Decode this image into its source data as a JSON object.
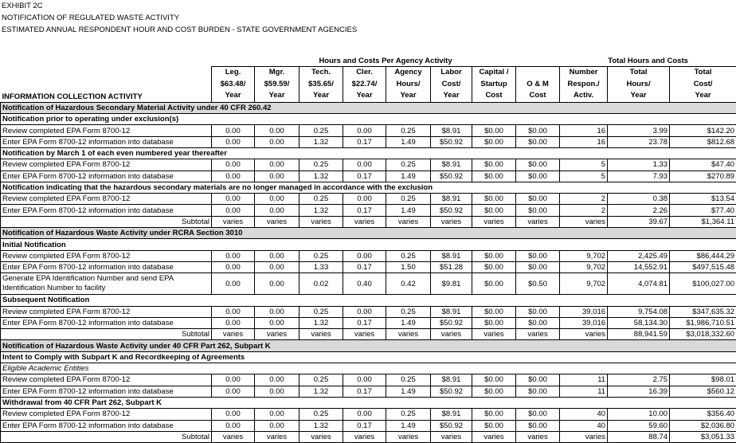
{
  "header": {
    "lines": [
      "EXHIBIT 2C",
      "NOTIFICATION OF REGULATED WASTE ACTIVITY",
      "ESTIMATED ANNUAL RESPONDENT HOUR AND COST BURDEN - STATE GOVERNMENT AGENCIES"
    ]
  },
  "table": {
    "group_headers": [
      "Hours and Costs Per Agency Activity",
      "Total Hours and Costs"
    ],
    "activity_header": "INFORMATION COLLECTION ACTIVITY",
    "column_headers": [
      [
        "Leg.",
        "$63.48/",
        "Year"
      ],
      [
        "Mgr.",
        "$59.59/",
        "Year"
      ],
      [
        "Tech.",
        "$35.65/",
        "Year"
      ],
      [
        "Cler.",
        "$22.74/",
        "Year"
      ],
      [
        "Agency",
        "Hours/",
        "Year"
      ],
      [
        "Labor",
        "Cost/",
        "Year"
      ],
      [
        "Capital /",
        "Startup",
        "Cost"
      ],
      [
        "O & M",
        "Cost"
      ],
      [
        "Number",
        "Respon./",
        "Activ."
      ],
      [
        "Total",
        "Hours/",
        "Year"
      ],
      [
        "Total",
        "Cost/",
        "Year"
      ]
    ],
    "sections": [
      {
        "title": "Notification of Hazardous Secondary Material Activity under 40 CFR 260.42",
        "groups": [
          {
            "title": "Notification prior to operating under exclusion(s)",
            "rows": [
              [
                "Review completed EPA Form 8700-12",
                "0.00",
                "0.00",
                "0.25",
                "0.00",
                "0.25",
                "$8.91",
                "$0.00",
                "$0.00",
                "16",
                "3.99",
                "$142.20"
              ],
              [
                "Enter EPA Form 8700-12 information into database",
                "0.00",
                "0.00",
                "1.32",
                "0.17",
                "1.49",
                "$50.92",
                "$0.00",
                "$0.00",
                "16",
                "23.78",
                "$812.68"
              ]
            ]
          },
          {
            "title": "Notification by March 1 of each even numbered year thereafter",
            "rows": [
              [
                "Review completed EPA Form 8700-12",
                "0.00",
                "0.00",
                "0.25",
                "0.00",
                "0.25",
                "$8.91",
                "$0.00",
                "$0.00",
                "5",
                "1.33",
                "$47.40"
              ],
              [
                "Enter EPA Form 8700-12 information into database",
                "0.00",
                "0.00",
                "1.32",
                "0.17",
                "1.49",
                "$50.92",
                "$0.00",
                "$0.00",
                "5",
                "7.93",
                "$270.89"
              ]
            ]
          },
          {
            "title": "Notification indicating that the hazardous secondary materials are no longer managed in accordance with the exclusion",
            "rows": [
              [
                "Review completed EPA Form 8700-12",
                "0.00",
                "0.00",
                "0.25",
                "0.00",
                "0.25",
                "$8.91",
                "$0.00",
                "$0.00",
                "2",
                "0.38",
                "$13.54"
              ],
              [
                "Enter EPA Form 8700-12 information into database",
                "0.00",
                "0.00",
                "1.32",
                "0.17",
                "1.49",
                "$50.92",
                "$0.00",
                "$0.00",
                "2",
                "2.26",
                "$77.40"
              ]
            ]
          }
        ],
        "subtotal": [
          "Subtotal",
          "varies",
          "varies",
          "varies",
          "varies",
          "varies",
          "varies",
          "varies",
          "varies",
          "varies",
          "39.67",
          "$1,364.11"
        ]
      },
      {
        "title": "Notification of Hazardous Waste Activity under RCRA Section 3010",
        "groups": [
          {
            "title": "Initial Notification",
            "rows": [
              [
                "Review completed EPA Form 8700-12",
                "0.00",
                "0.00",
                "0.25",
                "0.00",
                "0.25",
                "$8.91",
                "$0.00",
                "$0.00",
                "9,702",
                "2,425.49",
                "$86,444.29"
              ],
              [
                "Enter EPA Form 8700-12 information into database",
                "0.00",
                "0.00",
                "1.33",
                "0.17",
                "1.50",
                "$51.28",
                "$0.00",
                "$0.00",
                "9,702",
                "14,552.91",
                "$497,515.48"
              ],
              [
                "Generate EPA Identification Number and send EPA Identification Number to facility",
                "0.00",
                "0.00",
                "0.02",
                "0.40",
                "0.42",
                "$9.81",
                "$0.00",
                "$0.50",
                "9,702",
                "4,074.81",
                "$100,027.00"
              ]
            ]
          },
          {
            "title": "Subsequent Notification",
            "rows": [
              [
                "Review completed EPA Form 8700-12",
                "0.00",
                "0.00",
                "0.25",
                "0.00",
                "0.25",
                "$8.91",
                "$0.00",
                "$0.00",
                "39,016",
                "9,754.08",
                "$347,635.32"
              ],
              [
                "Enter EPA Form 8700-12 information into database",
                "0.00",
                "0.00",
                "1.32",
                "0.17",
                "1.49",
                "$50.92",
                "$0.00",
                "$0.00",
                "39,016",
                "58,134.30",
                "$1,986,710.51"
              ]
            ]
          }
        ],
        "subtotal": [
          "Subtotal",
          "varies",
          "varies",
          "varies",
          "varies",
          "varies",
          "varies",
          "varies",
          "varies",
          "varies",
          "88,941.59",
          "$3,018,332.60"
        ]
      },
      {
        "title": "Notification of Hazardous Waste Activity under 40 CFR Part 262, Subpart K",
        "groups": [
          {
            "title": "Intent to Comply with Subpart K and Recordkeeping of Agreements",
            "subtitle": "Eligible Academic Entities",
            "rows": [
              [
                "Review completed EPA Form 8700-12",
                "0.00",
                "0.00",
                "0.25",
                "0.00",
                "0.25",
                "$8.91",
                "$0.00",
                "$0.00",
                "11",
                "2.75",
                "$98.01"
              ],
              [
                "Enter EPA Form 8700-12 information into database",
                "0.00",
                "0.00",
                "1.32",
                "0.17",
                "1.49",
                "$50.92",
                "$0.00",
                "$0.00",
                "11",
                "16.39",
                "$560.12"
              ]
            ]
          },
          {
            "title": "Withdrawal from 40 CFR Part 262, Subpart K",
            "rows": [
              [
                "Review completed EPA Form 8700-12",
                "0.00",
                "0.00",
                "0.25",
                "0.00",
                "0.25",
                "$8.91",
                "$0.00",
                "$0.00",
                "40",
                "10.00",
                "$356.40"
              ],
              [
                "Enter EPA Form 8700-12 information into database",
                "0.00",
                "0.00",
                "1.32",
                "0.17",
                "1.49",
                "$50.92",
                "$0.00",
                "$0.00",
                "40",
                "59.60",
                "$2,036.80"
              ]
            ]
          }
        ],
        "subtotal": [
          "Subtotal",
          "varies",
          "varies",
          "varies",
          "varies",
          "varies",
          "varies",
          "varies",
          "varies",
          "varies",
          "88.74",
          "$3,051.33"
        ]
      }
    ]
  }
}
